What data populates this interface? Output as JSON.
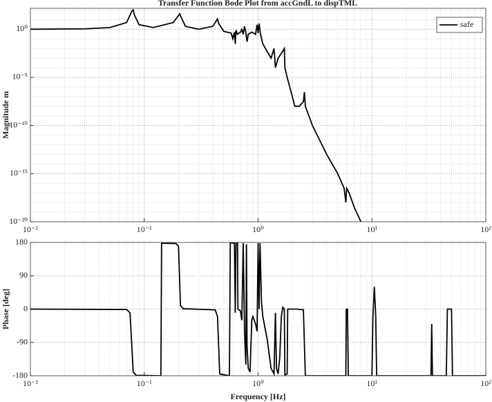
{
  "chart_data": [
    {
      "type": "line",
      "title": "Transfer Function Bode Plot from accGndL to dispTML",
      "y_label": "Magnitude m",
      "x_log": true,
      "y_log": true,
      "grid": true,
      "minor_grid": true,
      "legend": "upper right",
      "xlim": [
        0.01,
        100
      ],
      "ylim": [
        1e-20,
        150
      ],
      "xticks": [
        {
          "value": 0.01,
          "label": "10⁻²"
        },
        {
          "value": 0.1,
          "label": "10⁻¹"
        },
        {
          "value": 1,
          "label": "10⁰"
        },
        {
          "value": 10,
          "label": "10¹"
        },
        {
          "value": 100,
          "label": "10²"
        }
      ],
      "yticks": [
        {
          "value": 1e-20,
          "label": "10⁻²⁰"
        },
        {
          "value": 1e-15,
          "label": "10⁻¹⁵"
        },
        {
          "value": 1e-10,
          "label": "10⁻¹⁰"
        },
        {
          "value": 1e-05,
          "label": "10⁻⁵"
        },
        {
          "value": 1,
          "label": "10⁰"
        }
      ],
      "series": [
        {
          "name": "safe",
          "color": "#000000",
          "x": [
            0.01,
            0.03,
            0.05,
            0.07,
            0.078,
            0.08,
            0.082,
            0.09,
            0.12,
            0.18,
            0.205,
            0.21,
            0.23,
            0.3,
            0.4,
            0.44,
            0.45,
            0.5,
            0.58,
            0.6,
            0.62,
            0.63,
            0.64,
            0.66,
            0.7,
            0.72,
            0.74,
            0.76,
            0.78,
            0.8,
            0.82,
            0.88,
            0.95,
            0.98,
            1.0,
            1.02,
            1.05,
            1.1,
            1.2,
            1.3,
            1.38,
            1.42,
            1.5,
            1.6,
            1.7,
            1.72,
            1.8,
            2.0,
            2.1,
            2.3,
            2.5,
            2.55,
            2.6,
            3,
            4,
            5,
            5.7,
            5.9,
            6.0,
            6.3,
            7,
            8
          ],
          "values": [
            1,
            1.1,
            1.5,
            5,
            80,
            100,
            30,
            3,
            1.5,
            5,
            40,
            20,
            2,
            1,
            2,
            12,
            4,
            0.6,
            0.4,
            0.1,
            0.5,
            0.03,
            0.8,
            0.3,
            0.5,
            1,
            0.3,
            2,
            0.5,
            0.05,
            0.3,
            0.5,
            0.3,
            3,
            0.4,
            4,
            0.3,
            0.03,
            0.005,
            0.001,
            0.01,
            0.0001,
            0.001,
            0.003,
            0.01,
            0.0001,
            1e-05,
            1e-07,
            1e-08,
            1e-08,
            3e-08,
            3e-07,
            1e-08,
            1e-10,
            1e-13,
            1e-15,
            3e-17,
            1e-18,
            3e-17,
            1e-17,
            3e-19,
            1e-20
          ]
        }
      ]
    },
    {
      "type": "line",
      "y_label": "Phase [deg]",
      "x_label": "Frequency [Hz]",
      "x_log": true,
      "y_log": false,
      "grid": true,
      "minor_grid": true,
      "xlim": [
        0.01,
        100
      ],
      "ylim": [
        -180,
        180
      ],
      "xticks": [
        {
          "value": 0.01,
          "label": "10⁻²"
        },
        {
          "value": 0.1,
          "label": "10⁻¹"
        },
        {
          "value": 1,
          "label": "10⁰"
        },
        {
          "value": 10,
          "label": "10¹"
        },
        {
          "value": 100,
          "label": "10²"
        }
      ],
      "yticks": [
        -180,
        -90,
        0,
        90,
        180
      ],
      "series": [
        {
          "color": "#000000",
          "x": [
            0.01,
            0.07,
            0.075,
            0.08,
            0.085,
            0.14,
            0.142,
            0.19,
            0.2,
            0.208,
            0.22,
            0.42,
            0.44,
            0.46,
            0.56,
            0.57,
            0.62,
            0.63,
            0.64,
            0.66,
            0.665,
            0.7,
            0.72,
            0.74,
            0.76,
            0.78,
            0.79,
            0.8,
            0.82,
            0.85,
            0.88,
            0.9,
            0.95,
            0.98,
            1.0,
            1.02,
            1.04,
            1.07,
            1.1,
            1.2,
            1.3,
            1.38,
            1.42,
            1.45,
            1.5,
            1.55,
            1.6,
            1.65,
            1.7,
            1.72,
            1.8,
            1.82,
            2.2,
            2.5,
            2.6,
            5.9,
            5.95,
            6.1,
            6.2,
            10,
            10.2,
            10.5,
            10.8,
            11,
            33,
            33.5,
            34,
            45,
            46,
            50,
            51,
            100
          ],
          "values": [
            0,
            -1,
            -10,
            -170,
            -179,
            -180,
            178,
            177,
            170,
            10,
            1,
            -2,
            -20,
            -175,
            -180,
            179,
            178,
            -10,
            178,
            178,
            0,
            -5,
            -30,
            178,
            -60,
            -150,
            175,
            -100,
            -160,
            -170,
            -30,
            -20,
            -40,
            -60,
            178,
            0,
            178,
            20,
            -20,
            -80,
            -160,
            -175,
            -10,
            -160,
            -175,
            -130,
            -20,
            5,
            0,
            -178,
            -175,
            0,
            0,
            -2,
            -180,
            -180,
            0,
            0,
            -180,
            -180,
            -20,
            60,
            -20,
            -180,
            -180,
            -40,
            -180,
            -180,
            0,
            0,
            -180,
            -180
          ]
        }
      ]
    }
  ]
}
